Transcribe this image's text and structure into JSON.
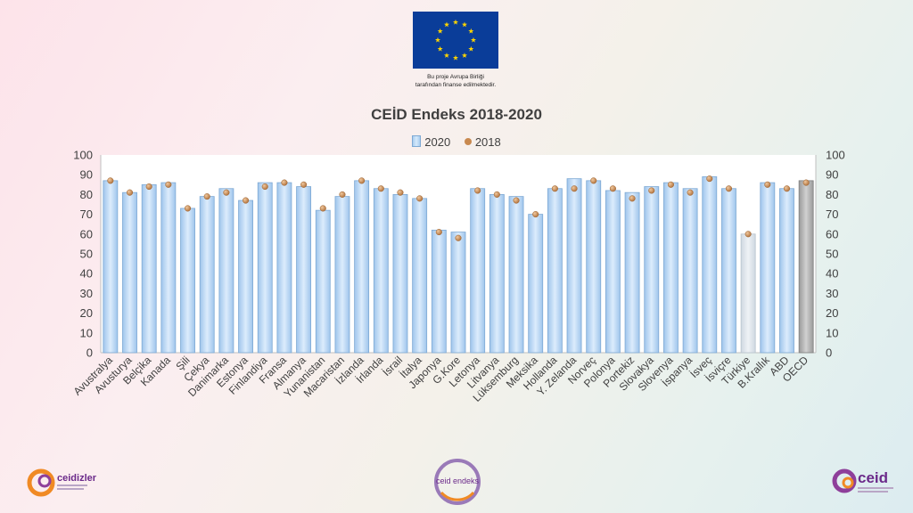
{
  "eu": {
    "caption_line1": "Bu proje Avrupa Birliği",
    "caption_line2": "tarafından finanse edilmektedir."
  },
  "logos": {
    "left": "ceidizler",
    "center": "ceid endeks",
    "right": "ceid"
  },
  "colors": {
    "bar2020": "#bcd8f4",
    "bar_turkiye": "#d9e2ea",
    "bar_oecd": "#b5b5b5",
    "dot2018": "#c8894f"
  },
  "chart_data": {
    "type": "bar",
    "title": "CEİD Endeks 2018-2020",
    "categories": [
      "Avustralya",
      "Avusturya",
      "Belçika",
      "Kanada",
      "Şili",
      "Çekya",
      "Danimarka",
      "Estonya",
      "Finlandiya",
      "Fransa",
      "Almanya",
      "Yunanistan",
      "Macaristan",
      "İzlanda",
      "İrlanda",
      "İsrail",
      "İtalya",
      "Japonya",
      "G.Kore",
      "Letonya",
      "Litvanya",
      "Lüksemburg",
      "Meksika",
      "Hollanda",
      "Y. Zelanda",
      "Norveç",
      "Polonya",
      "Portekiz",
      "Slovakya",
      "Slovenya",
      "İspanya",
      "İsveç",
      "İsviçre",
      "Türkiye",
      "B.Krallık",
      "ABD",
      "OECD"
    ],
    "series": [
      {
        "name": "2020",
        "kind": "bar",
        "values": [
          87,
          81,
          85,
          86,
          73,
          79,
          83,
          77,
          86,
          86,
          84,
          72,
          79,
          87,
          83,
          80,
          78,
          62,
          61,
          83,
          80,
          79,
          70,
          83,
          88,
          87,
          82,
          81,
          84,
          86,
          83,
          89,
          83,
          60,
          86,
          83,
          87
        ]
      },
      {
        "name": "2018",
        "kind": "dot",
        "values": [
          87,
          81,
          84,
          85,
          73,
          79,
          81,
          77,
          84,
          86,
          85,
          73,
          80,
          87,
          83,
          81,
          78,
          61,
          58,
          82,
          80,
          77,
          70,
          83,
          83,
          87,
          83,
          78,
          82,
          85,
          81,
          88,
          83,
          60,
          85,
          83,
          86
        ]
      }
    ],
    "ylim": [
      0,
      100
    ],
    "yticks": [
      0,
      10,
      20,
      30,
      40,
      50,
      60,
      70,
      80,
      90,
      100
    ],
    "secondary_y_axis": true,
    "legend_position": "top",
    "grid": false
  }
}
